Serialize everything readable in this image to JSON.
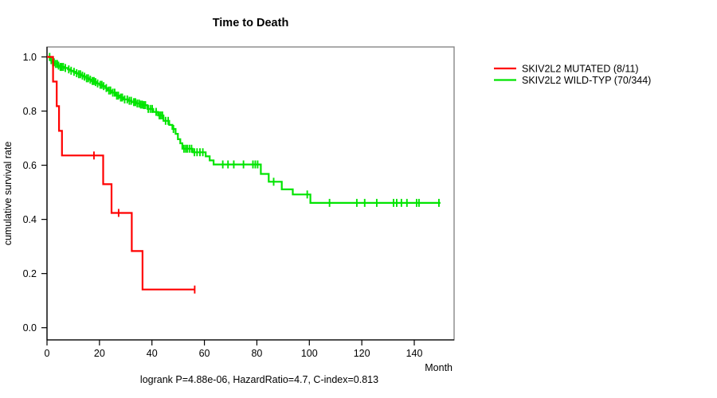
{
  "chart_data": {
    "type": "line",
    "subtype": "kaplan-meier-step",
    "title": "Time to Death",
    "xlabel": "Month",
    "ylabel": "cumulative survival rate",
    "annotation": "logrank P=4.88e-06, HazardRatio=4.7, C-index=0.813",
    "x_ticks": [
      0,
      20,
      40,
      60,
      80,
      100,
      120,
      140
    ],
    "y_ticks": [
      0.0,
      0.2,
      0.4,
      0.6,
      0.8,
      1.0
    ],
    "xlim": [
      0,
      155.5
    ],
    "ylim": [
      -0.04,
      1.04
    ],
    "grid": false,
    "legend_position": "right-outside",
    "series": [
      {
        "id": "mutated",
        "name": "SKIV2L2 MUTATED (8/11)",
        "color": "#ff0000",
        "n": 11,
        "events": 8,
        "steps": [
          [
            0,
            1.0
          ],
          [
            2.3,
            0.909
          ],
          [
            3.7,
            0.818
          ],
          [
            4.6,
            0.727
          ],
          [
            5.7,
            0.636
          ],
          [
            21.4,
            0.53
          ],
          [
            24.6,
            0.424
          ],
          [
            32.3,
            0.283
          ],
          [
            36.4,
            0.141
          ]
        ],
        "end_time": 56.3,
        "censor_times": [
          17.9,
          27.3,
          56.3
        ]
      },
      {
        "id": "wildtyp",
        "name": "SKIV2L2 WILD-TYP (70/344)",
        "color": "#00e400",
        "n": 344,
        "events": 70,
        "steps": [
          [
            0,
            1.0
          ],
          [
            1.2,
            0.988
          ],
          [
            2,
            0.98
          ],
          [
            3,
            0.974
          ],
          [
            4,
            0.968
          ],
          [
            5,
            0.963
          ],
          [
            6.4,
            0.959
          ],
          [
            8,
            0.954
          ],
          [
            9,
            0.949
          ],
          [
            10,
            0.945
          ],
          [
            11,
            0.94
          ],
          [
            12,
            0.936
          ],
          [
            13,
            0.931
          ],
          [
            14,
            0.927
          ],
          [
            15,
            0.921
          ],
          [
            16,
            0.916
          ],
          [
            17,
            0.911
          ],
          [
            18,
            0.907
          ],
          [
            19,
            0.902
          ],
          [
            20,
            0.897
          ],
          [
            21,
            0.892
          ],
          [
            22.3,
            0.885
          ],
          [
            23.1,
            0.876
          ],
          [
            24.5,
            0.868
          ],
          [
            26.2,
            0.857
          ],
          [
            27.5,
            0.85
          ],
          [
            29.2,
            0.843
          ],
          [
            31,
            0.838
          ],
          [
            32.3,
            0.833
          ],
          [
            34,
            0.828
          ],
          [
            35.3,
            0.824
          ],
          [
            36.5,
            0.822
          ],
          [
            38.3,
            0.808
          ],
          [
            40.5,
            0.797
          ],
          [
            42.3,
            0.784
          ],
          [
            44.4,
            0.764
          ],
          [
            46.6,
            0.749
          ],
          [
            47.8,
            0.734
          ],
          [
            49,
            0.716
          ],
          [
            49.9,
            0.696
          ],
          [
            50.8,
            0.681
          ],
          [
            51.6,
            0.661
          ],
          [
            55.5,
            0.648
          ],
          [
            60.5,
            0.633
          ],
          [
            62,
            0.618
          ],
          [
            63.5,
            0.603
          ],
          [
            81.5,
            0.568
          ],
          [
            84.5,
            0.539
          ],
          [
            89.5,
            0.511
          ],
          [
            93.7,
            0.492
          ],
          [
            100.4,
            0.461
          ]
        ],
        "end_time": 150,
        "censor_times": [
          1.0,
          1.6,
          2.2,
          2.7,
          3.3,
          3.9,
          4.4,
          5.1,
          5.6,
          6.2,
          7.0,
          8.3,
          9.2,
          10.3,
          11.3,
          12.1,
          12.7,
          13.5,
          14.3,
          15.1,
          15.7,
          16.5,
          17.3,
          17.9,
          18.5,
          19.3,
          20.3,
          20.9,
          21.6,
          22.6,
          23.6,
          24.2,
          25.1,
          25.8,
          26.6,
          27.2,
          28.1,
          28.7,
          29.6,
          30.6,
          31.4,
          32.1,
          33.1,
          33.7,
          34.4,
          35.1,
          35.7,
          36.3,
          36.9,
          37.5,
          38.6,
          39.4,
          40.1,
          41.6,
          42.8,
          43.4,
          44.0,
          45.2,
          46.2,
          48.2,
          52.2,
          52.9,
          53.5,
          54.3,
          55.1,
          56.2,
          57.2,
          58.3,
          59.4,
          67.0,
          69.0,
          71.2,
          74.9,
          78.5,
          79.4,
          80.3,
          86.4,
          99.2,
          107.7,
          118.1,
          121.1,
          125.7,
          132.1,
          133.3,
          135.1,
          137.2,
          140.9,
          141.8,
          149.4
        ]
      }
    ],
    "colors": {
      "axis": "#000000",
      "box": "#878787",
      "background": "#ffffff"
    }
  }
}
